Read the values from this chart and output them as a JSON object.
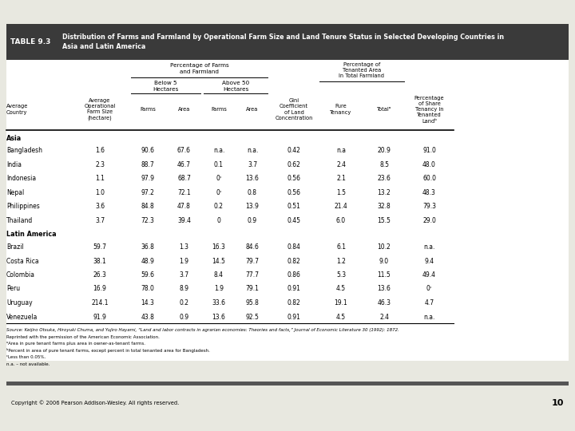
{
  "title_label": "TABLE 9.3",
  "title_text": "Distribution of Farms and Farmland by Operational Farm Size and Land Tenure Status in Selected Developing Countries in\nAsia and Latin America",
  "group_pct": "Percentage of Farms\nand Farmland",
  "group_b5": "Below 5\nHectares",
  "group_a50": "Above 50\nHectares",
  "group_tenanted": "Percentage of\nTenanted Area\nIn Total Farmland",
  "hdr_country": "Average\nCountry",
  "hdr_farmsize": "Average\nOperational\nFarm Size\n(hectare)",
  "hdr_b5farms": "Farms",
  "hdr_b5area": "Area",
  "hdr_a50farms": "Farms",
  "hdr_a50area": "Area",
  "hdr_gini": "Gini\nCoefficient\nof Land\nConcentration",
  "hdr_pure": "Pure\nTenancy",
  "hdr_total": "Totalᵃ",
  "hdr_share": "Percentage\nof Share\nTenancy in\nTenanted\nLandᵇ",
  "asia_rows": [
    [
      "Bangladesh",
      "1.6",
      "90.6",
      "67.6",
      "n.a.",
      "n.a.",
      "0.42",
      "n.a",
      "20.9",
      "91.0"
    ],
    [
      "India",
      "2.3",
      "88.7",
      "46.7",
      "0.1",
      "3.7",
      "0.62",
      "2.4",
      "8.5",
      "48.0"
    ],
    [
      "Indonesia",
      "1.1",
      "97.9",
      "68.7",
      "0ᶜ",
      "13.6",
      "0.56",
      "2.1",
      "23.6",
      "60.0"
    ],
    [
      "Nepal",
      "1.0",
      "97.2",
      "72.1",
      "0ᶜ",
      "0.8",
      "0.56",
      "1.5",
      "13.2",
      "48.3"
    ],
    [
      "Philippines",
      "3.6",
      "84.8",
      "47.8",
      "0.2",
      "13.9",
      "0.51",
      "21.4",
      "32.8",
      "79.3"
    ],
    [
      "Thailand",
      "3.7",
      "72.3",
      "39.4",
      "0",
      "0.9",
      "0.45",
      "6.0",
      "15.5",
      "29.0"
    ]
  ],
  "latin_rows": [
    [
      "Brazil",
      "59.7",
      "36.8",
      "1.3",
      "16.3",
      "84.6",
      "0.84",
      "6.1",
      "10.2",
      "n.a."
    ],
    [
      "Costa Rica",
      "38.1",
      "48.9",
      "1.9",
      "14.5",
      "79.7",
      "0.82",
      "1.2",
      "9.0",
      "9.4"
    ],
    [
      "Colombia",
      "26.3",
      "59.6",
      "3.7",
      "8.4",
      "77.7",
      "0.86",
      "5.3",
      "11.5",
      "49.4"
    ],
    [
      "Peru",
      "16.9",
      "78.0",
      "8.9",
      "1.9",
      "79.1",
      "0.91",
      "4.5",
      "13.6",
      "0ᶜ"
    ],
    [
      "Uruguay",
      "214.1",
      "14.3",
      "0.2",
      "33.6",
      "95.8",
      "0.82",
      "19.1",
      "46.3",
      "4.7"
    ],
    [
      "Venezuela",
      "91.9",
      "43.8",
      "0.9",
      "13.6",
      "92.5",
      "0.91",
      "4.5",
      "2.4",
      "n.a."
    ]
  ],
  "footnote1": "Source: Keijiro Otsuka, Hiroyuki Chuma, and Yujiro Hayami, “Land and labor contracts in agrarian economies: Theories and facts,” Journal of Economic Literature 30 (1992): 1872.",
  "footnote2": "Reprinted with the permission of the American Economic Association.",
  "footnote3a": "ᵃArea in pure tenant farms plus area in owner-as-tenant farms.",
  "footnote3b": "ᵇPercent in area of pure tenant farms, except percent in total tenanted area for Bangladesh.",
  "footnote3c": "ᶜLess than 0.05%.",
  "footnote3d": "n.a. – not available.",
  "copyright": "Copyright © 2006 Pearson Addison-Wesley. All rights reserved.",
  "page_num": "10",
  "header_bg": "#3a3a3a",
  "header_fg": "#ffffff",
  "bg_color": "#e8e8e0",
  "bar_color": "#555555"
}
